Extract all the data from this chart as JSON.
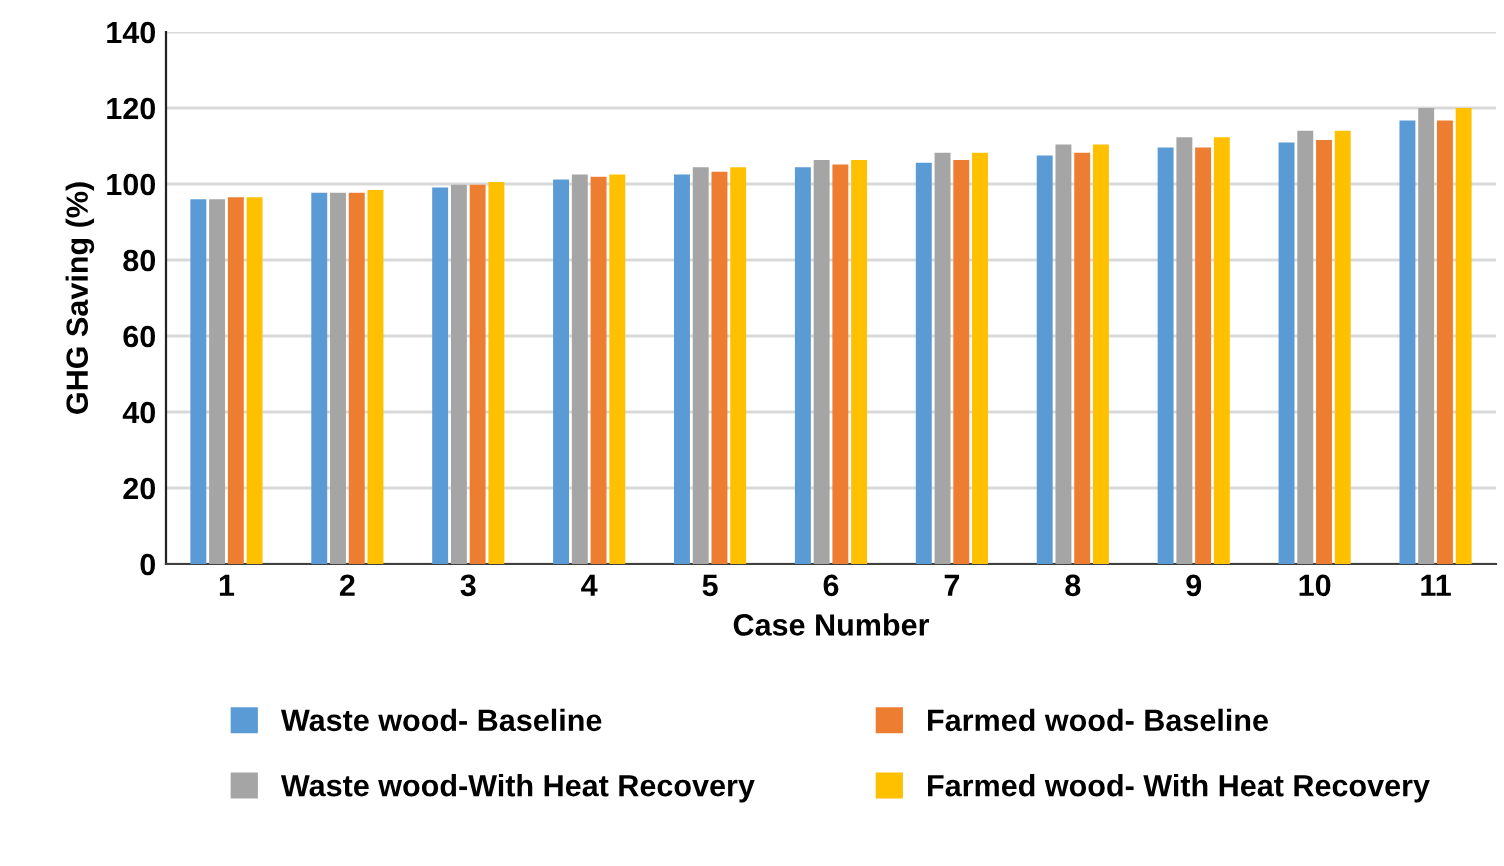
{
  "chart_data": {
    "type": "bar",
    "xlabel": "Case Number",
    "ylabel": "GHG Saving (%)",
    "categories": [
      "1",
      "2",
      "3",
      "4",
      "5",
      "6",
      "7",
      "8",
      "9",
      "10",
      "11"
    ],
    "series": [
      {
        "name": "Waste wood- Baseline",
        "color": "#5b9bd5",
        "values": [
          96,
          97.7,
          99.1,
          101.2,
          102.5,
          104.4,
          105.6,
          107.5,
          109.6,
          110.9,
          116.7
        ]
      },
      {
        "name": "Waste wood-With Heat Recovery",
        "color": "#a5a5a5",
        "values": [
          96,
          97.7,
          99.8,
          102.5,
          104.4,
          106.3,
          108.2,
          110.4,
          112.3,
          114,
          120
        ]
      },
      {
        "name": "Farmed wood- Baseline",
        "color": "#ed7d31",
        "values": [
          96.5,
          97.7,
          99.8,
          101.9,
          103.2,
          105.1,
          106.3,
          108.2,
          109.6,
          111.6,
          116.7
        ]
      },
      {
        "name": "Farmed wood- With Heat Recovery",
        "color": "#ffc000",
        "values": [
          96.5,
          98.4,
          100.5,
          102.5,
          104.4,
          106.3,
          108.2,
          110.4,
          112.3,
          114,
          120
        ]
      }
    ],
    "ylim": [
      0,
      140
    ],
    "yticks": [
      0,
      20,
      40,
      60,
      80,
      100,
      120,
      140
    ],
    "grid": "y",
    "legend": "bottom"
  }
}
